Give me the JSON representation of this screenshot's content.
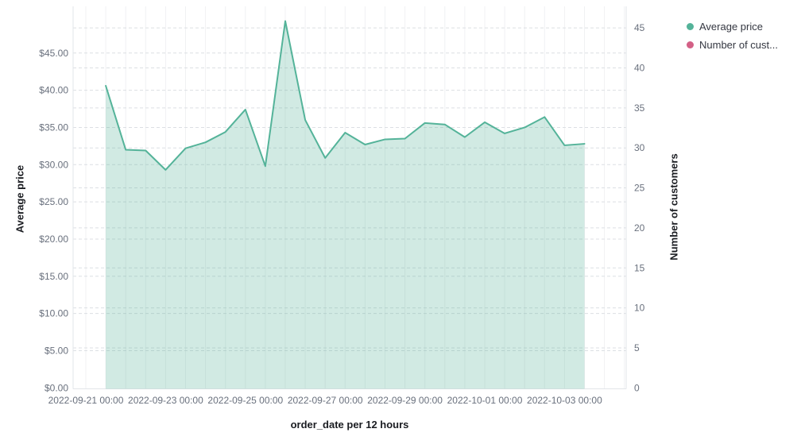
{
  "legend": {
    "items": [
      {
        "label": "Average price",
        "color": "#54B399"
      },
      {
        "label": "Number of cust...",
        "color": "#D36086"
      }
    ]
  },
  "axes": {
    "left": {
      "title": "Average price",
      "tick_labels": [
        "$0.00",
        "$5.00",
        "$10.00",
        "$15.00",
        "$20.00",
        "$25.00",
        "$30.00",
        "$35.00",
        "$40.00",
        "$45.00"
      ],
      "tick_values": [
        0,
        5,
        10,
        15,
        20,
        25,
        30,
        35,
        40,
        45
      ]
    },
    "right": {
      "title": "Number of customers",
      "tick_labels": [
        "0",
        "5",
        "10",
        "15",
        "20",
        "25",
        "30",
        "35",
        "40",
        "45"
      ],
      "tick_values": [
        0,
        5,
        10,
        15,
        20,
        25,
        30,
        35,
        40,
        45
      ]
    },
    "bottom": {
      "title": "order_date per 12 hours",
      "tick_labels": [
        "2022-09-21 00:00",
        "2022-09-23 00:00",
        "2022-09-25 00:00",
        "2022-09-27 00:00",
        "2022-09-29 00:00",
        "2022-10-01 00:00",
        "2022-10-03 00:00"
      ]
    }
  },
  "chart_data": {
    "type": "area",
    "title": "",
    "xlabel": "order_date per 12 hours",
    "ylabel_left": "Average price",
    "ylabel_right": "Number of customers",
    "x_interval": "12 hours",
    "x": [
      "2022-09-21 12:00",
      "2022-09-22 00:00",
      "2022-09-22 12:00",
      "2022-09-23 00:00",
      "2022-09-23 12:00",
      "2022-09-24 00:00",
      "2022-09-24 12:00",
      "2022-09-25 00:00",
      "2022-09-25 12:00",
      "2022-09-26 00:00",
      "2022-09-26 12:00",
      "2022-09-27 00:00",
      "2022-09-27 12:00",
      "2022-09-28 00:00",
      "2022-09-28 12:00",
      "2022-09-29 00:00",
      "2022-09-29 12:00",
      "2022-09-30 00:00",
      "2022-09-30 12:00",
      "2022-10-01 00:00",
      "2022-10-01 12:00",
      "2022-10-02 00:00",
      "2022-10-02 12:00",
      "2022-10-03 00:00",
      "2022-10-03 12:00"
    ],
    "series": [
      {
        "name": "Average price",
        "axis": "left",
        "type": "area",
        "color": "#54B399",
        "fill": "rgba(84,179,153,0.27)",
        "values": [
          40.6,
          32.0,
          31.9,
          29.3,
          32.2,
          33.0,
          34.4,
          37.4,
          29.8,
          49.3,
          36.0,
          30.9,
          34.3,
          32.7,
          33.4,
          33.5,
          35.6,
          35.4,
          33.7,
          35.7,
          34.2,
          35.0,
          36.4,
          32.6,
          32.8
        ]
      },
      {
        "name": "Number of customers",
        "axis": "right",
        "type": "area",
        "color": "#D36086",
        "values": []
      }
    ],
    "left_ylim": [
      0,
      51.3
    ],
    "right_ylim": [
      0,
      47.7
    ],
    "grid": true,
    "legend_position": "top-right"
  },
  "colors": {
    "series_green": "#54B399",
    "series_pink": "#D36086",
    "area_fill": "rgba(84,179,153,0.27)",
    "grid_vertical": "#f0f1f3",
    "grid_dashed": "#dcdfe3",
    "axis_line": "#e2e5e9",
    "tick_text": "#69707d",
    "title_text": "#1a1c21",
    "legend_text": "#343741"
  }
}
